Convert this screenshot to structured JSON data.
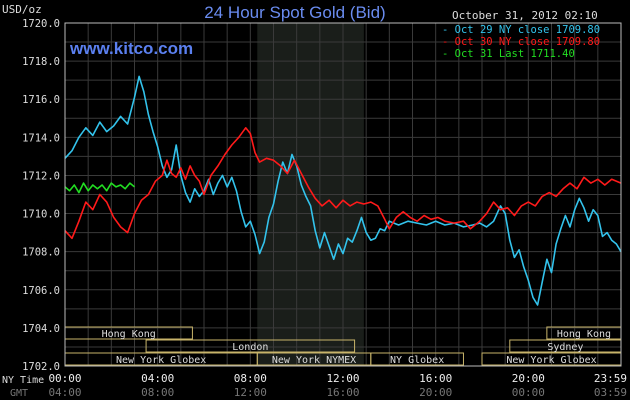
{
  "chart_data": {
    "type": "line",
    "title": "24 Hour Spot Gold (Bid)",
    "timestamp": "October 31, 2012 02:10",
    "watermark": "www.kitco.com",
    "ylabel": "USD/oz",
    "ylim": [
      1702,
      1720
    ],
    "xlim": [
      0,
      24
    ],
    "y_ticks": [
      "1720.0",
      "1718.0",
      "1716.0",
      "1714.0",
      "1712.0",
      "1710.0",
      "1708.0",
      "1706.0",
      "1704.0",
      "1702.0"
    ],
    "x_ticks_ny": [
      "00:00",
      "04:00",
      "08:00",
      "12:00",
      "16:00",
      "20:00",
      "23:59"
    ],
    "x_ticks_gmt": [
      "04:00",
      "08:00",
      "12:00",
      "16:00",
      "20:00",
      "00:00",
      "03:59"
    ],
    "x_row_labels": {
      "ny": "NY Time",
      "gmt": "GMT"
    },
    "grid": true,
    "legend_position": "top-right",
    "shaded_x_range": [
      8.3,
      12.9
    ],
    "colors": {
      "cyan": "#33c3ec",
      "red": "#ff1a1a",
      "green": "#22dd22"
    },
    "legend": [
      {
        "label": "Oct 29 NY close 1709.80",
        "color": "#33c3ec"
      },
      {
        "label": "Oct 30 NY close 1709.80",
        "color": "#ff1a1a"
      },
      {
        "label": "Oct 31 Last 1711.40",
        "color": "#22dd22"
      }
    ],
    "sessions": [
      {
        "label": "Hong Kong",
        "start": 0,
        "end": 5.5,
        "row": 0
      },
      {
        "label": "Hong Kong",
        "start": 20.8,
        "end": 24,
        "row": 0
      },
      {
        "label": "London",
        "start": 3.5,
        "end": 12.5,
        "row": 1
      },
      {
        "label": "Sydney",
        "start": 19.2,
        "end": 24,
        "row": 1
      },
      {
        "label": "New York Globex",
        "start": 0,
        "end": 8.3,
        "row": 2
      },
      {
        "label": "New York NYMEX",
        "start": 8.3,
        "end": 13.2,
        "row": 2
      },
      {
        "label": "NY Globex",
        "start": 13.2,
        "end": 17.2,
        "row": 2
      },
      {
        "label": "New York Globex",
        "start": 18,
        "end": 24,
        "row": 2
      }
    ],
    "series": [
      {
        "name": "Oct 29 NY close 1709.80",
        "color": "#33c3ec",
        "points": [
          [
            0,
            1712.9
          ],
          [
            0.3,
            1713.3
          ],
          [
            0.6,
            1714.0
          ],
          [
            0.9,
            1714.5
          ],
          [
            1.2,
            1714.1
          ],
          [
            1.5,
            1714.8
          ],
          [
            1.8,
            1714.3
          ],
          [
            2.1,
            1714.6
          ],
          [
            2.4,
            1715.1
          ],
          [
            2.7,
            1714.7
          ],
          [
            3.0,
            1716.1
          ],
          [
            3.2,
            1717.2
          ],
          [
            3.4,
            1716.4
          ],
          [
            3.6,
            1715.2
          ],
          [
            3.8,
            1714.3
          ],
          [
            4.0,
            1713.5
          ],
          [
            4.2,
            1712.5
          ],
          [
            4.4,
            1711.9
          ],
          [
            4.6,
            1712.3
          ],
          [
            4.8,
            1713.6
          ],
          [
            5.0,
            1712.0
          ],
          [
            5.2,
            1711.1
          ],
          [
            5.4,
            1710.6
          ],
          [
            5.6,
            1711.3
          ],
          [
            5.8,
            1710.9
          ],
          [
            6.0,
            1711.2
          ],
          [
            6.2,
            1711.8
          ],
          [
            6.4,
            1711.0
          ],
          [
            6.6,
            1711.6
          ],
          [
            6.8,
            1712.0
          ],
          [
            7.0,
            1711.4
          ],
          [
            7.2,
            1711.9
          ],
          [
            7.4,
            1711.2
          ],
          [
            7.6,
            1710.1
          ],
          [
            7.8,
            1709.3
          ],
          [
            8.0,
            1709.6
          ],
          [
            8.2,
            1708.9
          ],
          [
            8.4,
            1707.9
          ],
          [
            8.6,
            1708.5
          ],
          [
            8.8,
            1709.8
          ],
          [
            9.0,
            1710.5
          ],
          [
            9.2,
            1711.7
          ],
          [
            9.4,
            1712.7
          ],
          [
            9.6,
            1712.1
          ],
          [
            9.8,
            1713.1
          ],
          [
            10.0,
            1712.5
          ],
          [
            10.2,
            1711.5
          ],
          [
            10.4,
            1710.9
          ],
          [
            10.6,
            1710.4
          ],
          [
            10.8,
            1709.1
          ],
          [
            11.0,
            1708.2
          ],
          [
            11.2,
            1709.0
          ],
          [
            11.4,
            1708.3
          ],
          [
            11.6,
            1707.6
          ],
          [
            11.8,
            1708.4
          ],
          [
            12.0,
            1707.9
          ],
          [
            12.2,
            1708.7
          ],
          [
            12.4,
            1708.5
          ],
          [
            12.6,
            1709.1
          ],
          [
            12.8,
            1709.8
          ],
          [
            13.0,
            1709.0
          ],
          [
            13.2,
            1708.6
          ],
          [
            13.4,
            1708.7
          ],
          [
            13.6,
            1709.2
          ],
          [
            13.8,
            1709.1
          ],
          [
            14.0,
            1709.6
          ],
          [
            14.4,
            1709.4
          ],
          [
            14.8,
            1709.6
          ],
          [
            15.2,
            1709.5
          ],
          [
            15.6,
            1709.4
          ],
          [
            16.0,
            1709.6
          ],
          [
            16.4,
            1709.4
          ],
          [
            16.8,
            1709.5
          ],
          [
            17.2,
            1709.3
          ],
          [
            17.6,
            1709.4
          ],
          [
            17.9,
            1709.5
          ],
          [
            18.2,
            1709.3
          ],
          [
            18.5,
            1709.6
          ],
          [
            18.8,
            1710.4
          ],
          [
            19.0,
            1710.0
          ],
          [
            19.2,
            1708.6
          ],
          [
            19.4,
            1707.7
          ],
          [
            19.6,
            1708.1
          ],
          [
            19.8,
            1707.2
          ],
          [
            20.0,
            1706.5
          ],
          [
            20.2,
            1705.6
          ],
          [
            20.4,
            1705.2
          ],
          [
            20.6,
            1706.4
          ],
          [
            20.8,
            1707.6
          ],
          [
            21.0,
            1706.9
          ],
          [
            21.2,
            1708.4
          ],
          [
            21.4,
            1709.2
          ],
          [
            21.6,
            1709.9
          ],
          [
            21.8,
            1709.3
          ],
          [
            22.0,
            1710.2
          ],
          [
            22.2,
            1710.8
          ],
          [
            22.4,
            1710.3
          ],
          [
            22.6,
            1709.6
          ],
          [
            22.8,
            1710.2
          ],
          [
            23.0,
            1709.9
          ],
          [
            23.2,
            1708.8
          ],
          [
            23.4,
            1709.0
          ],
          [
            23.6,
            1708.6
          ],
          [
            23.8,
            1708.4
          ],
          [
            24.0,
            1708.0
          ]
        ]
      },
      {
        "name": "Oct 30 NY close 1709.80",
        "color": "#ff1a1a",
        "points": [
          [
            0,
            1709.1
          ],
          [
            0.3,
            1708.7
          ],
          [
            0.6,
            1709.6
          ],
          [
            0.9,
            1710.6
          ],
          [
            1.2,
            1710.2
          ],
          [
            1.5,
            1711.0
          ],
          [
            1.8,
            1710.6
          ],
          [
            2.1,
            1709.8
          ],
          [
            2.4,
            1709.3
          ],
          [
            2.7,
            1709.0
          ],
          [
            3.0,
            1710.0
          ],
          [
            3.3,
            1710.7
          ],
          [
            3.6,
            1711.0
          ],
          [
            3.9,
            1711.7
          ],
          [
            4.2,
            1712.0
          ],
          [
            4.4,
            1712.8
          ],
          [
            4.6,
            1712.1
          ],
          [
            4.8,
            1711.9
          ],
          [
            5.0,
            1712.4
          ],
          [
            5.2,
            1711.8
          ],
          [
            5.4,
            1712.5
          ],
          [
            5.6,
            1712.0
          ],
          [
            5.8,
            1711.7
          ],
          [
            6.0,
            1711.0
          ],
          [
            6.3,
            1712.0
          ],
          [
            6.6,
            1712.5
          ],
          [
            6.9,
            1713.1
          ],
          [
            7.2,
            1713.6
          ],
          [
            7.5,
            1714.0
          ],
          [
            7.8,
            1714.5
          ],
          [
            8.0,
            1714.2
          ],
          [
            8.2,
            1713.2
          ],
          [
            8.4,
            1712.7
          ],
          [
            8.7,
            1712.9
          ],
          [
            9.0,
            1712.8
          ],
          [
            9.3,
            1712.5
          ],
          [
            9.6,
            1712.1
          ],
          [
            9.9,
            1712.8
          ],
          [
            10.2,
            1712.1
          ],
          [
            10.5,
            1711.4
          ],
          [
            10.8,
            1710.8
          ],
          [
            11.1,
            1710.4
          ],
          [
            11.4,
            1710.7
          ],
          [
            11.7,
            1710.3
          ],
          [
            12.0,
            1710.7
          ],
          [
            12.3,
            1710.4
          ],
          [
            12.6,
            1710.6
          ],
          [
            12.9,
            1710.5
          ],
          [
            13.2,
            1710.6
          ],
          [
            13.5,
            1710.4
          ],
          [
            13.8,
            1709.7
          ],
          [
            14.0,
            1709.2
          ],
          [
            14.3,
            1709.8
          ],
          [
            14.6,
            1710.1
          ],
          [
            14.9,
            1709.8
          ],
          [
            15.2,
            1709.6
          ],
          [
            15.5,
            1709.9
          ],
          [
            15.8,
            1709.7
          ],
          [
            16.1,
            1709.8
          ],
          [
            16.4,
            1709.6
          ],
          [
            16.8,
            1709.5
          ],
          [
            17.2,
            1709.6
          ],
          [
            17.5,
            1709.2
          ],
          [
            17.9,
            1709.6
          ],
          [
            18.2,
            1710.0
          ],
          [
            18.5,
            1710.6
          ],
          [
            18.8,
            1710.2
          ],
          [
            19.1,
            1710.3
          ],
          [
            19.4,
            1709.9
          ],
          [
            19.7,
            1710.4
          ],
          [
            20.0,
            1710.6
          ],
          [
            20.3,
            1710.4
          ],
          [
            20.6,
            1710.9
          ],
          [
            20.9,
            1711.1
          ],
          [
            21.2,
            1710.9
          ],
          [
            21.5,
            1711.3
          ],
          [
            21.8,
            1711.6
          ],
          [
            22.1,
            1711.3
          ],
          [
            22.4,
            1711.9
          ],
          [
            22.7,
            1711.6
          ],
          [
            23.0,
            1711.8
          ],
          [
            23.3,
            1711.5
          ],
          [
            23.6,
            1711.8
          ],
          [
            24.0,
            1711.6
          ]
        ]
      },
      {
        "name": "Oct 31 Last 1711.40",
        "color": "#22dd22",
        "points": [
          [
            0,
            1711.4
          ],
          [
            0.2,
            1711.2
          ],
          [
            0.4,
            1711.5
          ],
          [
            0.6,
            1711.1
          ],
          [
            0.8,
            1711.6
          ],
          [
            1.0,
            1711.2
          ],
          [
            1.2,
            1711.5
          ],
          [
            1.4,
            1711.3
          ],
          [
            1.6,
            1711.5
          ],
          [
            1.8,
            1711.2
          ],
          [
            2.0,
            1711.6
          ],
          [
            2.2,
            1711.4
          ],
          [
            2.4,
            1711.5
          ],
          [
            2.6,
            1711.3
          ],
          [
            2.8,
            1711.6
          ],
          [
            3.0,
            1711.4
          ]
        ]
      }
    ]
  }
}
